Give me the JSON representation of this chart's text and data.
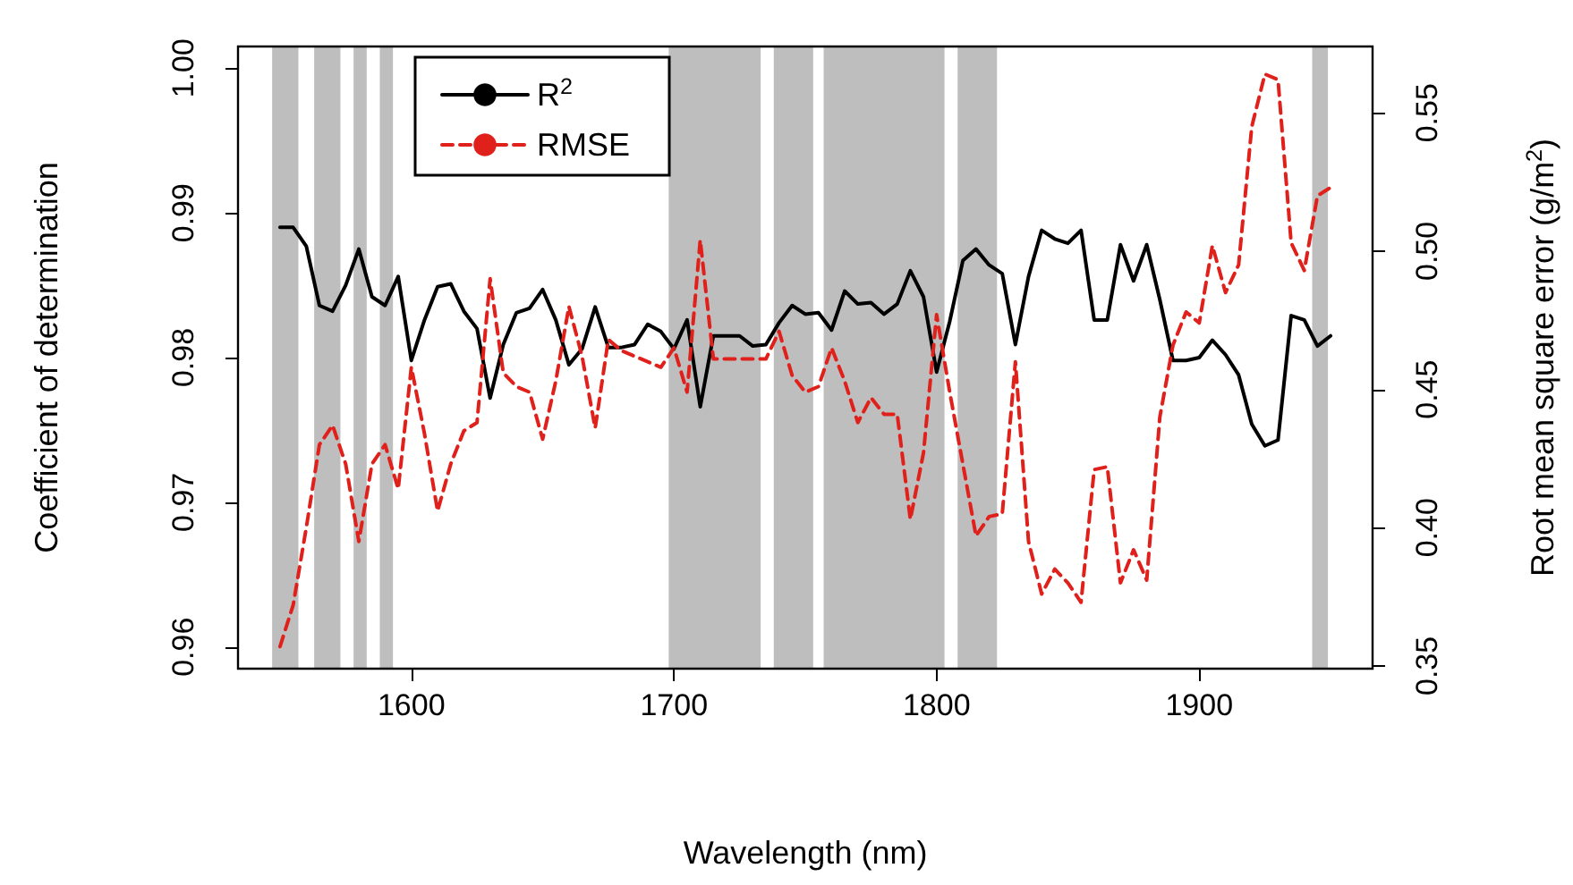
{
  "chart_data": {
    "type": "line",
    "xlabel": "Wavelength (nm)",
    "ylabel": "Coefficient of determination",
    "y2label": "Root mean square error (g/m$^{2}$)",
    "x": [
      1550,
      1555,
      1560,
      1565,
      1570,
      1575,
      1580,
      1585,
      1590,
      1595,
      1600,
      1605,
      1610,
      1615,
      1620,
      1625,
      1630,
      1635,
      1640,
      1645,
      1650,
      1655,
      1660,
      1665,
      1670,
      1675,
      1680,
      1685,
      1690,
      1695,
      1700,
      1705,
      1710,
      1715,
      1720,
      1725,
      1730,
      1735,
      1740,
      1745,
      1750,
      1755,
      1760,
      1765,
      1770,
      1775,
      1780,
      1785,
      1790,
      1795,
      1800,
      1805,
      1810,
      1815,
      1820,
      1825,
      1830,
      1835,
      1840,
      1845,
      1850,
      1855,
      1860,
      1865,
      1870,
      1875,
      1880,
      1885,
      1890,
      1895,
      1900,
      1905,
      1910,
      1915,
      1920,
      1925,
      1930,
      1935,
      1940,
      1945,
      1950
    ],
    "series": [
      {
        "name": "R$^{2}$",
        "color": "#000000",
        "line_style": "solid",
        "values": [
          0.989,
          0.989,
          0.9877,
          0.9836,
          0.9832,
          0.985,
          0.9875,
          0.9842,
          0.9836,
          0.9856,
          0.9798,
          0.9826,
          0.9849,
          0.9851,
          0.9832,
          0.982,
          0.9772,
          0.9809,
          0.9831,
          0.9834,
          0.9847,
          0.9826,
          0.9795,
          0.9806,
          0.9835,
          0.9807,
          0.9807,
          0.9809,
          0.9823,
          0.9818,
          0.9806,
          0.9826,
          0.9766,
          0.9815,
          0.9815,
          0.9815,
          0.9808,
          0.9809,
          0.9824,
          0.9836,
          0.983,
          0.9831,
          0.9819,
          0.9846,
          0.9837,
          0.9838,
          0.983,
          0.9837,
          0.986,
          0.9842,
          0.979,
          0.9825,
          0.9867,
          0.9875,
          0.9864,
          0.9858,
          0.9809,
          0.9856,
          0.9888,
          0.9882,
          0.9879,
          0.9888,
          0.9826,
          0.9826,
          0.9878,
          0.9853,
          0.9878,
          0.984,
          0.9798,
          0.9798,
          0.98,
          0.9812,
          0.9802,
          0.9788,
          0.9754,
          0.9739,
          0.9743,
          0.9829,
          0.9826,
          0.9808,
          0.9815
        ]
      },
      {
        "name": "RMSE",
        "color": "#e0201b",
        "line_style": "dashed",
        "axis": "y2",
        "values": [
          0.357,
          0.372,
          0.4,
          0.43,
          0.437,
          0.423,
          0.395,
          0.423,
          0.43,
          0.414,
          0.458,
          0.434,
          0.406,
          0.423,
          0.435,
          0.438,
          0.49,
          0.456,
          0.451,
          0.449,
          0.432,
          0.453,
          0.48,
          0.462,
          0.436,
          0.468,
          0.464,
          0.462,
          0.46,
          0.458,
          0.465,
          0.449,
          0.504,
          0.461,
          0.461,
          0.461,
          0.461,
          0.461,
          0.471,
          0.455,
          0.449,
          0.451,
          0.465,
          0.453,
          0.438,
          0.447,
          0.441,
          0.441,
          0.403,
          0.427,
          0.477,
          0.449,
          0.423,
          0.397,
          0.404,
          0.405,
          0.46,
          0.395,
          0.376,
          0.385,
          0.38,
          0.373,
          0.421,
          0.422,
          0.38,
          0.392,
          0.381,
          0.44,
          0.466,
          0.478,
          0.474,
          0.502,
          0.485,
          0.495,
          0.545,
          0.564,
          0.562,
          0.503,
          0.493,
          0.52,
          0.523
        ]
      }
    ],
    "bands": [
      {
        "axis": "x",
        "from": 1547,
        "to": 1557,
        "color": "#bebebe"
      },
      {
        "axis": "x",
        "from": 1563,
        "to": 1573,
        "color": "#bebebe"
      },
      {
        "axis": "x",
        "from": 1578,
        "to": 1583,
        "color": "#bebebe"
      },
      {
        "axis": "x",
        "from": 1588,
        "to": 1593,
        "color": "#bebebe"
      },
      {
        "axis": "x",
        "from": 1698,
        "to": 1733,
        "color": "#bebebe"
      },
      {
        "axis": "x",
        "from": 1738,
        "to": 1753,
        "color": "#bebebe"
      },
      {
        "axis": "x",
        "from": 1757,
        "to": 1803,
        "color": "#bebebe"
      },
      {
        "axis": "x",
        "from": 1808,
        "to": 1823,
        "color": "#bebebe"
      },
      {
        "axis": "x",
        "from": 1943,
        "to": 1949,
        "color": "#bebebe"
      }
    ],
    "xlim": [
      1534,
      1966
    ],
    "xticks": [
      1600,
      1700,
      1800,
      1900
    ],
    "ylim": [
      0.9585,
      1.0015
    ],
    "yticks": [
      0.96,
      0.97,
      0.98,
      0.99,
      {
        "value": 1,
        "label": "1.00"
      }
    ],
    "y2lim": [
      0.349,
      0.574
    ],
    "y2ticks": [
      0.35,
      {
        "value": 0.4,
        "label": "0.40"
      },
      0.45,
      {
        "value": 0.5,
        "label": "0.50"
      },
      0.55
    ],
    "grid": false,
    "legend": "top left",
    "marker": "none"
  }
}
